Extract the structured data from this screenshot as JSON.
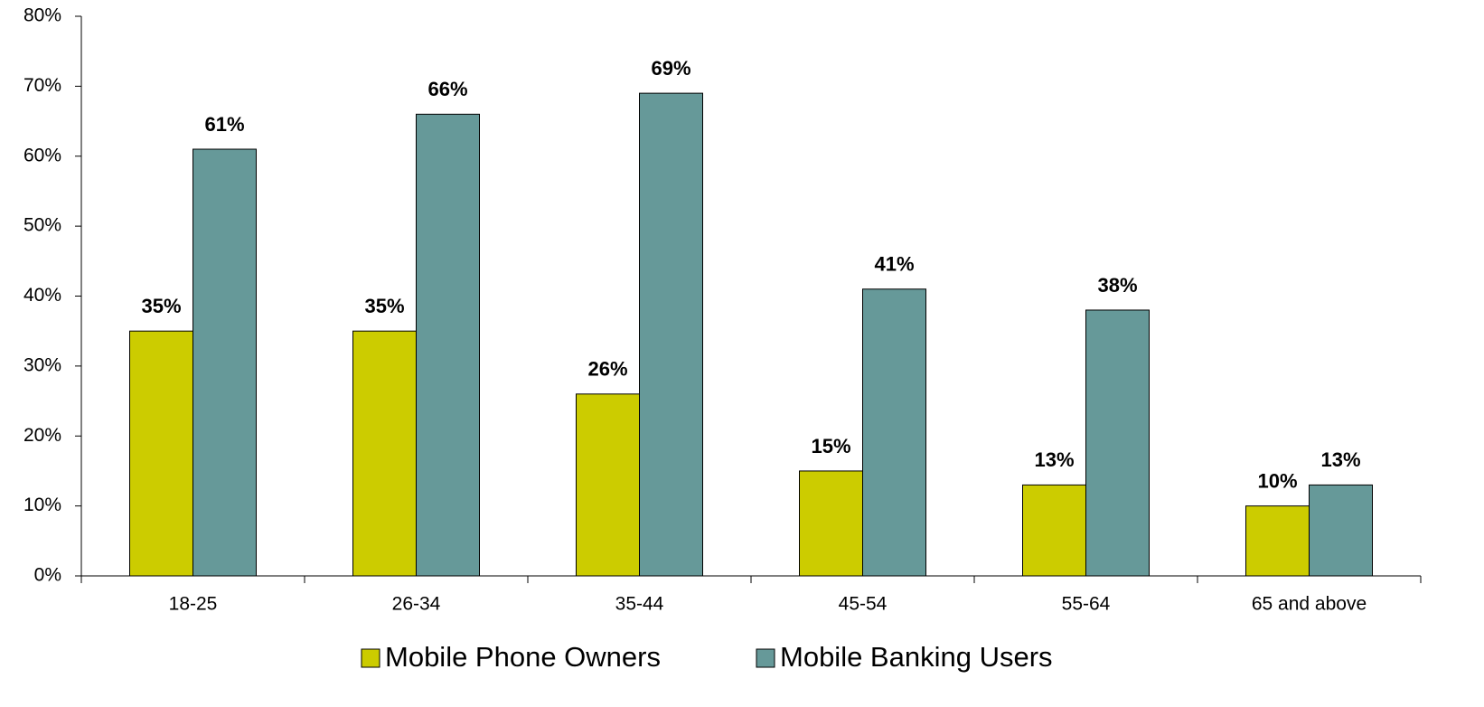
{
  "chart_data": {
    "type": "bar",
    "categories": [
      "18-25",
      "26-34",
      "35-44",
      "45-54",
      "55-64",
      "65 and above"
    ],
    "series": [
      {
        "name": "Mobile Phone Owners",
        "color": "#cccc00",
        "values": [
          35,
          35,
          26,
          15,
          13,
          10
        ],
        "value_labels": [
          "35%",
          "35%",
          "26%",
          "15%",
          "13%",
          "10%"
        ]
      },
      {
        "name": "Mobile Banking Users",
        "color": "#669999",
        "values": [
          61,
          66,
          69,
          41,
          38,
          13
        ],
        "value_labels": [
          "61%",
          "66%",
          "69%",
          "41%",
          "38%",
          "13%"
        ]
      }
    ],
    "ylim": [
      0,
      80
    ],
    "yticks": [
      {
        "value": 0,
        "label": "0%"
      },
      {
        "value": 10,
        "label": "10%"
      },
      {
        "value": 20,
        "label": "20%"
      },
      {
        "value": 30,
        "label": "30%"
      },
      {
        "value": 40,
        "label": "40%"
      },
      {
        "value": 50,
        "label": "50%"
      },
      {
        "value": 60,
        "label": "60%"
      },
      {
        "value": 70,
        "label": "70%"
      },
      {
        "value": 80,
        "label": "80%"
      }
    ],
    "legend": "bottom"
  }
}
